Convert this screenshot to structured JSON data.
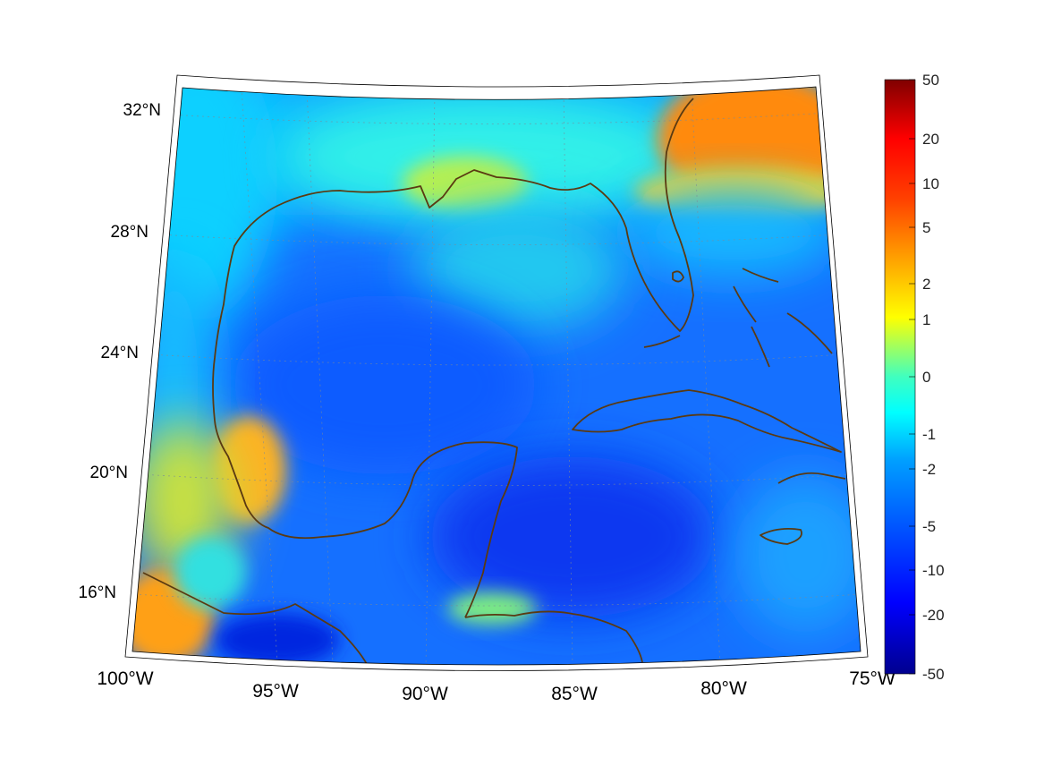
{
  "map": {
    "projection": "conic",
    "region": "Gulf of Mexico and Caribbean",
    "extent": {
      "lon_min": -100,
      "lon_max": -75,
      "lat_min": 14.5,
      "lat_max": 33
    },
    "coastline_color": "#5a3a12",
    "gridlines": true,
    "lat_labels": [
      "32°N",
      "28°N",
      "24°N",
      "20°N",
      "16°N"
    ],
    "lon_labels": [
      "100°W",
      "95°W",
      "90°W",
      "85°W",
      "80°W",
      "75°W"
    ]
  },
  "colorbar": {
    "colormap": "jet",
    "placement": "right",
    "ticks": [
      "50",
      "20",
      "10",
      "5",
      "2",
      "1",
      "0",
      "-1",
      "-2",
      "-5",
      "-10",
      "-20",
      "-50"
    ]
  },
  "field_patches": [
    {
      "name": "open-gulf-deep-blue",
      "value": -12
    },
    {
      "name": "northern-gulf-shelf",
      "value": -2
    },
    {
      "name": "mississippi-delta-plume",
      "value": 0.5
    },
    {
      "name": "atlantic-northeast-warm",
      "value": 5
    },
    {
      "name": "bay-of-campeche-warm",
      "value": 3
    },
    {
      "name": "pacific-southwest-warm",
      "value": 4
    },
    {
      "name": "gulf-of-honduras",
      "value": 0
    },
    {
      "name": "caribbean-deep-blue",
      "value": -20
    }
  ]
}
